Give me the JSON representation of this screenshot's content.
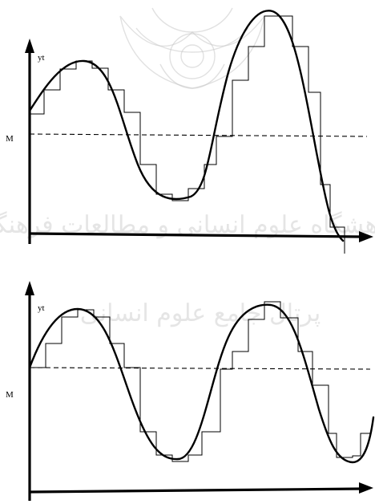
{
  "panels": [
    {
      "y_label": "yt",
      "mean_label": "M",
      "curve": "sine-wave",
      "steps": "step-approximation"
    },
    {
      "y_label": "yt",
      "mean_label": "M",
      "curve": "sine-wave",
      "steps": "step-approximation"
    }
  ],
  "watermark": {
    "text_line_1": "پرتال جامع علوم انسانی",
    "text_line_2": "پژوهشگاه علوم انسانی و مطالعات فرهنگی"
  }
}
